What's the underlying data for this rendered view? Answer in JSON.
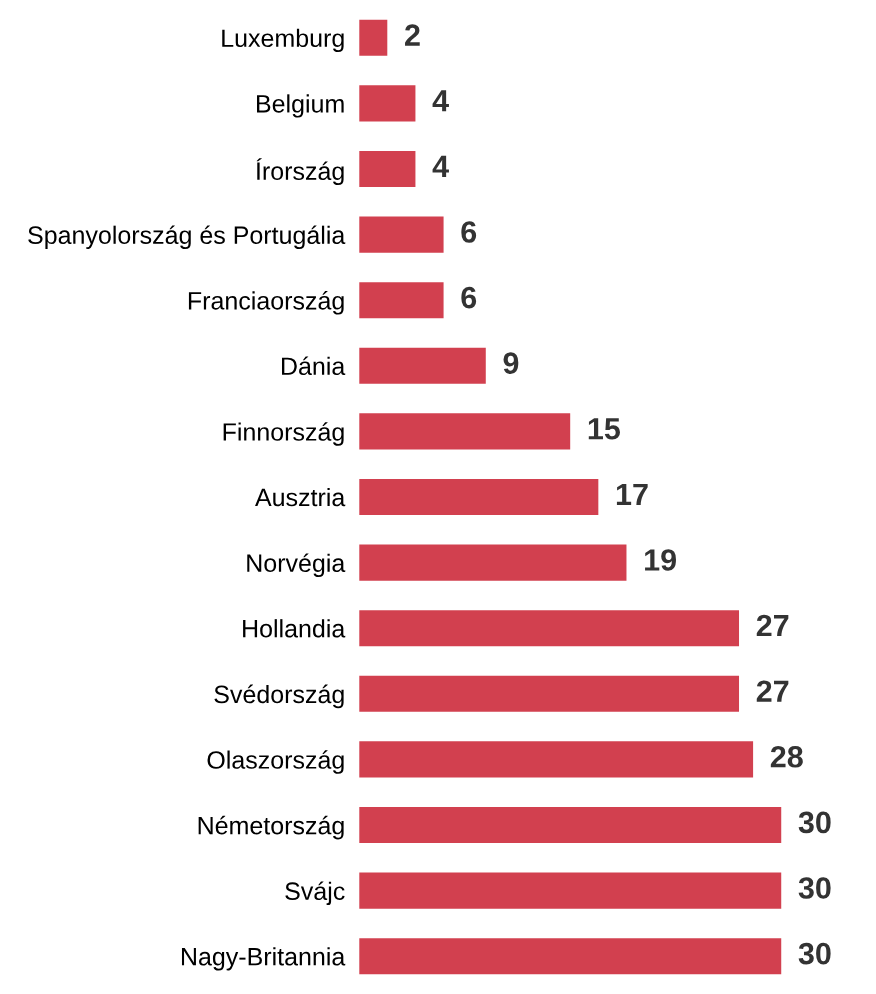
{
  "chart_data": {
    "type": "bar",
    "orientation": "horizontal",
    "categories": [
      "Luxemburg",
      "Belgium",
      "Írország",
      "Spanyolország és Portugália",
      "Franciaország",
      "Dánia",
      "Finnország",
      "Ausztria",
      "Norvégia",
      "Hollandia",
      "Svédország",
      "Olaszország",
      "Németország",
      "Svájc",
      "Nagy-Britannia"
    ],
    "values": [
      2,
      4,
      4,
      6,
      6,
      9,
      15,
      17,
      19,
      27,
      27,
      28,
      30,
      30,
      30
    ],
    "color": "#d2404f",
    "data_labels": true,
    "grid": false,
    "legend": false
  }
}
